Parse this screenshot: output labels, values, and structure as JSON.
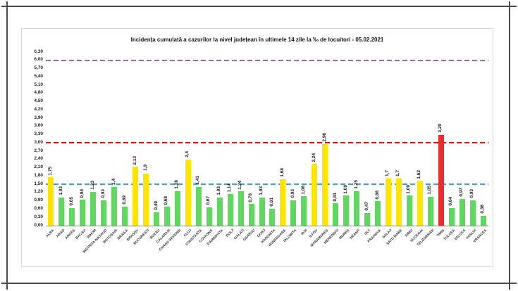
{
  "chart_data": {
    "type": "bar",
    "title": "Incidența cumulată a cazurilor la nivel județean în ultimele 14 zile   la ‰ de locuitori - 05.02.2021",
    "y_axis": {
      "min": 0,
      "max": 6.3,
      "step": 0.3,
      "tick_labels_format": "comma-decimal"
    },
    "ylim": [
      0,
      6.3
    ],
    "grid": false,
    "legend": false,
    "thresholds": [
      {
        "value": 6.0,
        "color": "#8f6bbf",
        "name": "threshold-6"
      },
      {
        "value": 3.0,
        "color": "#ff0000",
        "name": "threshold-3"
      },
      {
        "value": 1.5,
        "color": "#2fa9e0",
        "name": "threshold-1-5"
      }
    ],
    "palette": {
      "green": "#5fd85f",
      "yellow": "#ffe500",
      "red": "#eb2d2d"
    },
    "bars": [
      {
        "county": "ALBA",
        "value": 1.75,
        "label": "1,75",
        "color": "yellow"
      },
      {
        "county": "ARAD",
        "value": 1.03,
        "label": "1,03",
        "color": "green"
      },
      {
        "county": "ARGES",
        "value": 0.65,
        "label": "0,65",
        "color": "green"
      },
      {
        "county": "BACAU",
        "value": 0.94,
        "label": "0,94",
        "color": "green"
      },
      {
        "county": "BIHOR",
        "value": 1.23,
        "label": "1,23",
        "color": "green"
      },
      {
        "county": "BISTRITA-NASAUD",
        "value": 0.93,
        "label": "0,93",
        "color": "green"
      },
      {
        "county": "BOTOSANI",
        "value": 1.4,
        "label": "1,4",
        "color": "green"
      },
      {
        "county": "BRAILA",
        "value": 0.69,
        "label": "0,69",
        "color": "green"
      },
      {
        "county": "BRASOV",
        "value": 2.13,
        "label": "2,13",
        "color": "yellow"
      },
      {
        "county": "BUCURESTI",
        "value": 1.9,
        "label": "1,9",
        "color": "yellow"
      },
      {
        "county": "BUZAU",
        "value": 0.49,
        "label": "0,49",
        "color": "green"
      },
      {
        "county": "CALARASI",
        "value": 0.68,
        "label": "0,68",
        "color": "green"
      },
      {
        "county": "CARAS-SEVERIN",
        "value": 1.26,
        "label": "1,26",
        "color": "green"
      },
      {
        "county": "CLUJ",
        "value": 2.4,
        "label": "2,4",
        "color": "yellow"
      },
      {
        "county": "CONSTANTA",
        "value": 1.41,
        "label": "1,41",
        "color": "green"
      },
      {
        "county": "COVASNA",
        "value": 0.67,
        "label": "0,67",
        "color": "green"
      },
      {
        "county": "DAMBOVITA",
        "value": 1.03,
        "label": "1,03",
        "color": "green"
      },
      {
        "county": "DOLJ",
        "value": 1.14,
        "label": "1,14",
        "color": "green"
      },
      {
        "county": "GALATI",
        "value": 1.24,
        "label": "1,24",
        "color": "green"
      },
      {
        "county": "GIURGIU",
        "value": 0.78,
        "label": "0,78",
        "color": "green"
      },
      {
        "county": "GORJ",
        "value": 1.03,
        "label": "1,03",
        "color": "green"
      },
      {
        "county": "HARGHITA",
        "value": 0.61,
        "label": "0,61",
        "color": "green"
      },
      {
        "county": "HUNEDOARA",
        "value": 1.68,
        "label": "1,68",
        "color": "yellow"
      },
      {
        "county": "IALOMITA",
        "value": 0.93,
        "label": "0,93",
        "color": "green"
      },
      {
        "county": "IASI",
        "value": 1.06,
        "label": "1,06",
        "color": "green"
      },
      {
        "county": "ILFOV",
        "value": 2.24,
        "label": "2,24",
        "color": "yellow"
      },
      {
        "county": "MARAMURES",
        "value": 2.96,
        "label": "2,96",
        "color": "yellow"
      },
      {
        "county": "MEHEDINTI",
        "value": 0.81,
        "label": "0,81",
        "color": "green"
      },
      {
        "county": "MURES",
        "value": 1.09,
        "label": "1,09",
        "color": "green"
      },
      {
        "county": "NEAMT",
        "value": 1.25,
        "label": "1,25",
        "color": "green"
      },
      {
        "county": "OLT",
        "value": 0.47,
        "label": "0,47",
        "color": "green"
      },
      {
        "county": "PRAHOVA",
        "value": 0.88,
        "label": "0,88",
        "color": "green"
      },
      {
        "county": "SALAJ",
        "value": 1.7,
        "label": "1,7",
        "color": "yellow"
      },
      {
        "county": "SATU MARE",
        "value": 1.7,
        "label": "1,7",
        "color": "yellow"
      },
      {
        "county": "SIBIU",
        "value": 1.09,
        "label": "1,09",
        "color": "green"
      },
      {
        "county": "SUCEAVA",
        "value": 1.62,
        "label": "1,62",
        "color": "yellow"
      },
      {
        "county": "TELEORMAN",
        "value": 1.05,
        "label": "1,05",
        "color": "green"
      },
      {
        "county": "TIMIS",
        "value": 3.29,
        "label": "3,29",
        "color": "red"
      },
      {
        "county": "TULCEA",
        "value": 0.64,
        "label": "0,64",
        "color": "green"
      },
      {
        "county": "VALCEA",
        "value": 0.97,
        "label": "0,97",
        "color": "green"
      },
      {
        "county": "VASLUI",
        "value": 0.93,
        "label": "0,93",
        "color": "green"
      },
      {
        "county": "VRANCEA",
        "value": 0.36,
        "label": "0,36",
        "color": "green"
      }
    ]
  }
}
